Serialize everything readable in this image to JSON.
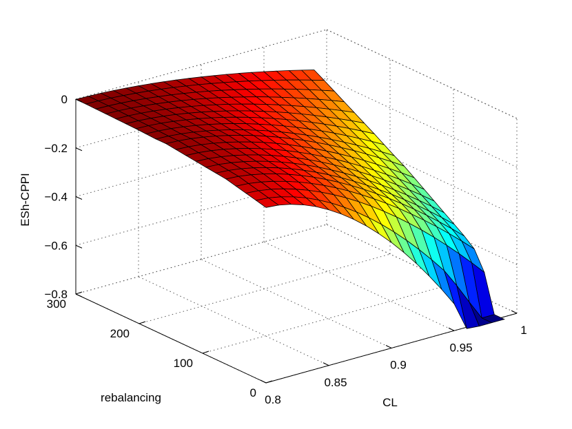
{
  "chart_data": {
    "type": "surface",
    "zlabel": "ESh-CPPI",
    "xlabel": "CL",
    "ylabel": "rebalancing",
    "x_ticks": [
      "0.8",
      "0.85",
      "0.9",
      "0.95",
      "1"
    ],
    "y_ticks": [
      "0",
      "100",
      "200",
      "300"
    ],
    "z_ticks": [
      "0",
      "−0.2",
      "−0.4",
      "−0.6",
      "−0.8"
    ],
    "xlim": [
      0.8,
      1.0
    ],
    "ylim": [
      0,
      300
    ],
    "zlim": [
      -0.8,
      0
    ],
    "grid": true,
    "colormap": "jet",
    "clim": [
      -0.8,
      0
    ],
    "grid_size": [
      20,
      20
    ],
    "surface": {
      "note_x_range": [
        0.8,
        0.99
      ],
      "rebalancing_range": [
        0,
        300
      ],
      "rows_value_at_CL_0_8_by_rebalancing": [
        -0.08,
        -0.07,
        -0.06,
        -0.05,
        -0.04,
        -0.035,
        -0.03,
        -0.025,
        -0.02,
        -0.015,
        -0.01,
        -0.01,
        -0.008,
        -0.006,
        -0.005,
        -0.004,
        -0.003,
        -0.002,
        -0.001,
        -0.001
      ],
      "min_value": -0.81,
      "max_value": -0.001
    }
  }
}
